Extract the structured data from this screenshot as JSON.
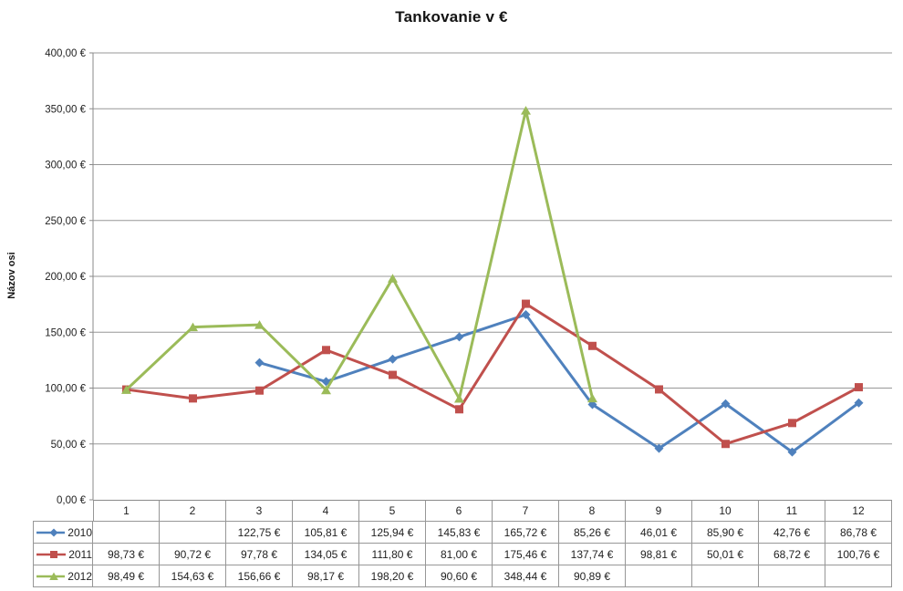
{
  "ui_colors": {
    "background": "#ffffff",
    "gridline": "#979797",
    "axis_line": "#8a8a8a",
    "table_border": "#979797",
    "text": "#1f1f1f"
  },
  "chart_data": {
    "type": "line",
    "title": "Tankovanie v €",
    "y_axis_title": "Názov osi",
    "xlabel": "",
    "ylabel": "Názov osi",
    "categories": [
      "1",
      "2",
      "3",
      "4",
      "5",
      "6",
      "7",
      "8",
      "9",
      "10",
      "11",
      "12"
    ],
    "series": [
      {
        "name": "2010",
        "color": "#4F81BD",
        "marker": "diamond",
        "values": [
          null,
          null,
          122.75,
          105.81,
          125.94,
          145.83,
          165.72,
          85.26,
          46.01,
          85.9,
          42.76,
          86.78
        ],
        "labels": [
          "",
          "",
          "122,75 €",
          "105,81 €",
          "125,94 €",
          "145,83 €",
          "165,72 €",
          "85,26 €",
          "46,01 €",
          "85,90 €",
          "42,76 €",
          "86,78 €"
        ]
      },
      {
        "name": "2011",
        "color": "#C0504D",
        "marker": "square",
        "values": [
          98.73,
          90.72,
          97.78,
          134.05,
          111.8,
          81.0,
          175.46,
          137.74,
          98.81,
          50.01,
          68.72,
          100.76
        ],
        "labels": [
          "98,73 €",
          "90,72 €",
          "97,78 €",
          "134,05 €",
          "111,80 €",
          "81,00 €",
          "175,46 €",
          "137,74 €",
          "98,81 €",
          "50,01 €",
          "68,72 €",
          "100,76 €"
        ]
      },
      {
        "name": "2012",
        "color": "#9BBB59",
        "marker": "triangle",
        "values": [
          98.49,
          154.63,
          156.66,
          98.17,
          198.2,
          90.6,
          348.44,
          90.89,
          null,
          null,
          null,
          null
        ],
        "labels": [
          "98,49 €",
          "154,63 €",
          "156,66 €",
          "98,17 €",
          "198,20 €",
          "90,60 €",
          "348,44 €",
          "90,89 €",
          "",
          "",
          "",
          ""
        ]
      }
    ],
    "ylim": [
      0,
      400
    ],
    "ytick_step": 50,
    "ytick_labels": [
      "0,00 €",
      "50,00 €",
      "100,00 €",
      "150,00 €",
      "200,00 €",
      "250,00 €",
      "300,00 €",
      "350,00 €",
      "400,00 €"
    ],
    "grid": true,
    "legend_position": "data-table-left"
  }
}
